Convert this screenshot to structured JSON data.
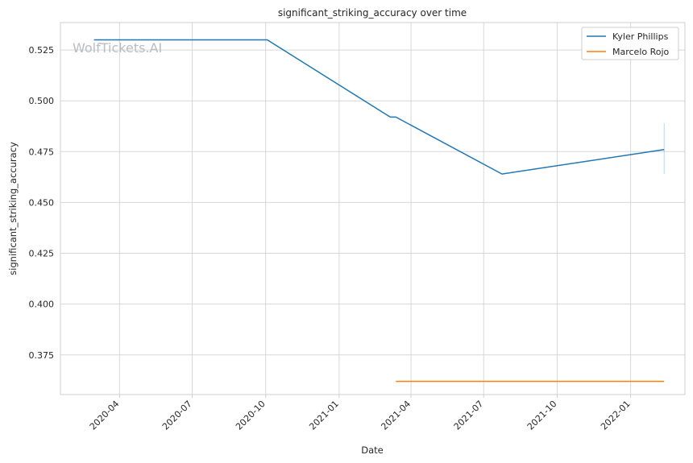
{
  "chart_data": {
    "type": "line",
    "title": "significant_striking_accuracy over time",
    "xlabel": "Date",
    "ylabel": "significant_striking_accuracy",
    "watermark": "WolfTickets.AI",
    "xlim": [
      "2020-01-18",
      "2022-03-10"
    ],
    "ylim": [
      0.3555,
      0.5385
    ],
    "x_ticks": [
      "2020-04-01",
      "2020-07-01",
      "2020-10-01",
      "2021-01-01",
      "2021-04-01",
      "2021-07-01",
      "2021-10-01",
      "2022-01-01"
    ],
    "x_tick_labels": [
      "2020-04",
      "2020-07",
      "2020-10",
      "2021-01",
      "2021-04",
      "2021-07",
      "2021-10",
      "2022-01"
    ],
    "y_ticks": [
      0.375,
      0.4,
      0.425,
      0.45,
      0.475,
      0.5,
      0.525
    ],
    "y_tick_labels": [
      "0.375",
      "0.400",
      "0.425",
      "0.450",
      "0.475",
      "0.500",
      "0.525"
    ],
    "grid": true,
    "legend_position": "top-right",
    "series": [
      {
        "name": "Kyler Phillips",
        "color": "#1f77b4",
        "points": [
          {
            "x": "2020-02-29",
            "y": 0.53
          },
          {
            "x": "2020-10-03",
            "y": 0.53
          },
          {
            "x": "2021-03-06",
            "y": 0.492
          },
          {
            "x": "2021-03-13",
            "y": 0.492
          },
          {
            "x": "2021-07-24",
            "y": 0.464
          },
          {
            "x": "2022-02-12",
            "y": 0.476
          }
        ],
        "error_band": {
          "x": "2022-02-12",
          "low": 0.464,
          "high": 0.489
        }
      },
      {
        "name": "Marcelo Rojo",
        "color": "#ff7f0e",
        "points": [
          {
            "x": "2021-03-13",
            "y": 0.362
          },
          {
            "x": "2022-02-12",
            "y": 0.362
          }
        ]
      }
    ]
  }
}
